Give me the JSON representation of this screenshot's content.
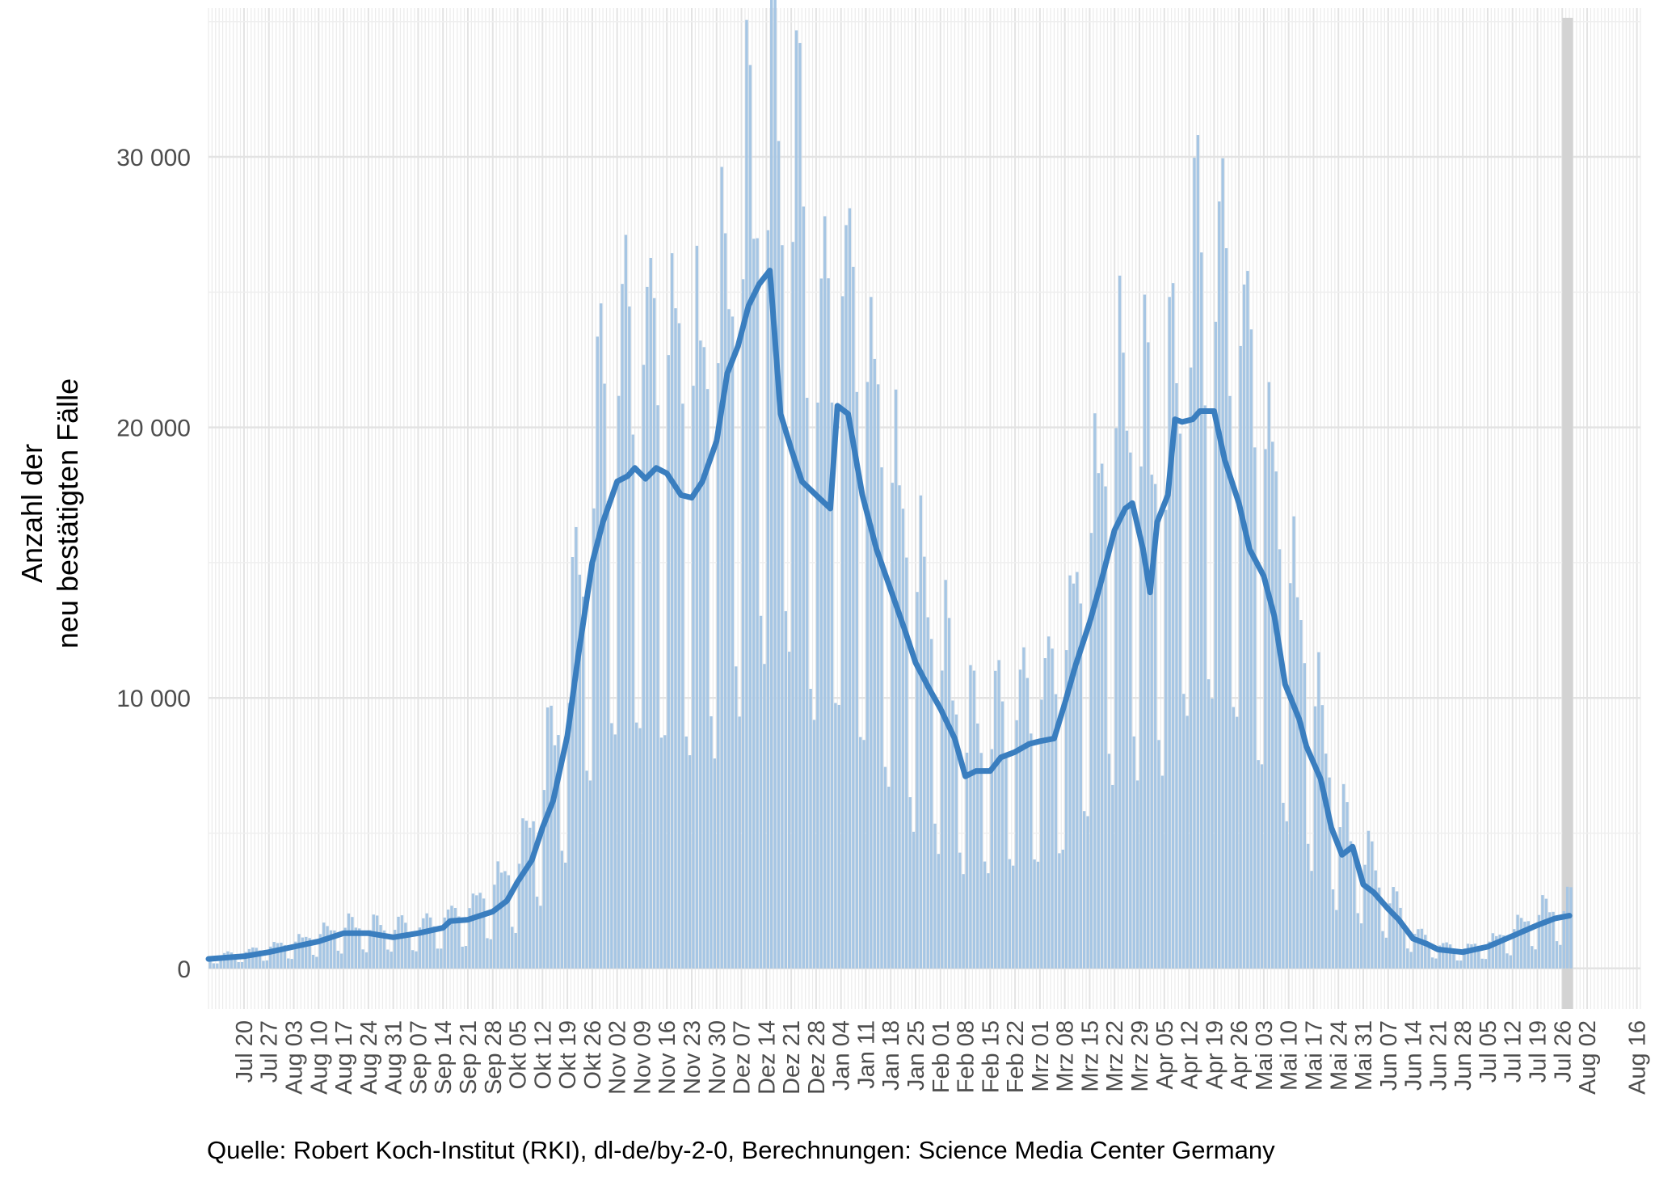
{
  "chart_data": {
    "type": "bar",
    "ylabel_lines": [
      "Anzahl der",
      "neu bestätigten Fälle"
    ],
    "ylim": [
      -1500,
      35500
    ],
    "yticks": [
      0,
      10000,
      20000,
      30000
    ],
    "ytick_labels": [
      "0",
      "10 000",
      "20 000",
      "30 000"
    ],
    "x_range": [
      "2020-07-10",
      "2021-08-17"
    ],
    "xtick_dates": [
      "2020-07-20",
      "2020-07-27",
      "2020-08-03",
      "2020-08-10",
      "2020-08-17",
      "2020-08-24",
      "2020-08-31",
      "2020-09-07",
      "2020-09-14",
      "2020-09-21",
      "2020-09-28",
      "2020-10-05",
      "2020-10-12",
      "2020-10-19",
      "2020-10-26",
      "2020-11-02",
      "2020-11-09",
      "2020-11-16",
      "2020-11-23",
      "2020-11-30",
      "2020-12-07",
      "2020-12-14",
      "2020-12-21",
      "2020-12-28",
      "2021-01-04",
      "2021-01-11",
      "2021-01-18",
      "2021-01-25",
      "2021-02-01",
      "2021-02-08",
      "2021-02-15",
      "2021-02-22",
      "2021-03-01",
      "2021-03-08",
      "2021-03-15",
      "2021-03-22",
      "2021-03-29",
      "2021-04-05",
      "2021-04-12",
      "2021-04-19",
      "2021-04-26",
      "2021-05-03",
      "2021-05-10",
      "2021-05-17",
      "2021-05-24",
      "2021-05-31",
      "2021-06-07",
      "2021-06-14",
      "2021-06-21",
      "2021-06-28",
      "2021-07-05",
      "2021-07-12",
      "2021-07-19",
      "2021-07-26",
      "2021-08-02",
      "2021-08-16"
    ],
    "xtick_labels": [
      "Jul 20",
      "Jul 27",
      "Aug 03",
      "Aug 10",
      "Aug 17",
      "Aug 24",
      "Aug 31",
      "Sep 07",
      "Sep 14",
      "Sep 21",
      "Sep 28",
      "Okt 05",
      "Okt 12",
      "Okt 19",
      "Okt 26",
      "Nov 02",
      "Nov 09",
      "Nov 16",
      "Nov 23",
      "Nov 30",
      "Dez 07",
      "Dez 14",
      "Dez 21",
      "Dez 28",
      "Jan 04",
      "Jan 11",
      "Jan 18",
      "Jan 25",
      "Feb 01",
      "Feb 08",
      "Feb 15",
      "Feb 22",
      "Mrz 01",
      "Mrz 08",
      "Mrz 15",
      "Mrz 22",
      "Mrz 29",
      "Apr 05",
      "Apr 12",
      "Apr 19",
      "Apr 26",
      "Mai 03",
      "Mai 10",
      "Mai 17",
      "Mai 24",
      "Mai 31",
      "Jun 07",
      "Jun 14",
      "Jun 21",
      "Jun 28",
      "Jul 05",
      "Jul 12",
      "Jul 19",
      "Jul 26",
      "Aug 02",
      "Aug 16"
    ],
    "series": [
      {
        "kind": "bars",
        "color": "#a6c6e4",
        "start_date": "2020-07-10",
        "end_date": "2021-07-28",
        "weekly_pattern": [
          1.15,
          1.45,
          1.4,
          1.25,
          1.1,
          0.5,
          0.45
        ],
        "points": [
          [
            "2020-07-10",
            350
          ],
          [
            "2020-07-20",
            500
          ],
          [
            "2020-08-03",
            800
          ],
          [
            "2020-08-17",
            1300
          ],
          [
            "2020-08-24",
            1300
          ],
          [
            "2020-09-07",
            1300
          ],
          [
            "2020-09-21",
            1800
          ],
          [
            "2020-10-05",
            3200
          ],
          [
            "2020-10-12",
            5700
          ],
          [
            "2020-10-19",
            9000
          ],
          [
            "2020-10-26",
            15500
          ],
          [
            "2020-11-02",
            18200
          ],
          [
            "2020-11-09",
            18400
          ],
          [
            "2020-11-16",
            18300
          ],
          [
            "2020-11-23",
            17400
          ],
          [
            "2020-11-30",
            18500
          ],
          [
            "2020-12-07",
            22000
          ],
          [
            "2020-12-14",
            25000
          ],
          [
            "2020-12-21",
            24500
          ],
          [
            "2020-12-28",
            18000
          ],
          [
            "2021-01-04",
            20500
          ],
          [
            "2021-01-11",
            17500
          ],
          [
            "2021-01-18",
            14500
          ],
          [
            "2021-01-25",
            11500
          ],
          [
            "2021-02-01",
            9500
          ],
          [
            "2021-02-08",
            7300
          ],
          [
            "2021-02-15",
            7400
          ],
          [
            "2021-02-22",
            7900
          ],
          [
            "2021-03-01",
            8200
          ],
          [
            "2021-03-08",
            9500
          ],
          [
            "2021-03-15",
            13000
          ],
          [
            "2021-03-22",
            16500
          ],
          [
            "2021-03-29",
            16000
          ],
          [
            "2021-04-05",
            15500
          ],
          [
            "2021-04-12",
            20300
          ],
          [
            "2021-04-19",
            20600
          ],
          [
            "2021-04-26",
            19000
          ],
          [
            "2021-05-03",
            15500
          ],
          [
            "2021-05-10",
            11500
          ],
          [
            "2021-05-17",
            8000
          ],
          [
            "2021-05-24",
            4500
          ],
          [
            "2021-05-31",
            3500
          ],
          [
            "2021-06-07",
            2200
          ],
          [
            "2021-06-14",
            1100
          ],
          [
            "2021-06-21",
            700
          ],
          [
            "2021-06-28",
            600
          ],
          [
            "2021-07-05",
            800
          ],
          [
            "2021-07-12",
            1200
          ],
          [
            "2021-07-19",
            1700
          ],
          [
            "2021-07-28",
            2000
          ]
        ]
      },
      {
        "kind": "line",
        "color": "#3a7ebf",
        "points": [
          [
            "2020-07-10",
            350
          ],
          [
            "2020-07-20",
            450
          ],
          [
            "2020-07-27",
            600
          ],
          [
            "2020-08-03",
            800
          ],
          [
            "2020-08-10",
            1000
          ],
          [
            "2020-08-17",
            1300
          ],
          [
            "2020-08-24",
            1300
          ],
          [
            "2020-08-31",
            1150
          ],
          [
            "2020-09-07",
            1300
          ],
          [
            "2020-09-14",
            1500
          ],
          [
            "2020-09-16",
            1750
          ],
          [
            "2020-09-21",
            1800
          ],
          [
            "2020-09-28",
            2100
          ],
          [
            "2020-10-02",
            2500
          ],
          [
            "2020-10-05",
            3200
          ],
          [
            "2020-10-09",
            4000
          ],
          [
            "2020-10-12",
            5200
          ],
          [
            "2020-10-15",
            6200
          ],
          [
            "2020-10-19",
            8600
          ],
          [
            "2020-10-22",
            11500
          ],
          [
            "2020-10-26",
            15000
          ],
          [
            "2020-10-29",
            16500
          ],
          [
            "2020-11-02",
            18000
          ],
          [
            "2020-11-05",
            18200
          ],
          [
            "2020-11-07",
            18500
          ],
          [
            "2020-11-10",
            18100
          ],
          [
            "2020-11-13",
            18500
          ],
          [
            "2020-11-16",
            18300
          ],
          [
            "2020-11-20",
            17500
          ],
          [
            "2020-11-23",
            17400
          ],
          [
            "2020-11-26",
            18000
          ],
          [
            "2020-11-30",
            19500
          ],
          [
            "2020-12-03",
            22000
          ],
          [
            "2020-12-06",
            23000
          ],
          [
            "2020-12-09",
            24500
          ],
          [
            "2020-12-12",
            25300
          ],
          [
            "2020-12-15",
            25800
          ],
          [
            "2020-12-18",
            20500
          ],
          [
            "2020-12-21",
            19200
          ],
          [
            "2020-12-24",
            18000
          ],
          [
            "2020-12-28",
            17500
          ],
          [
            "2021-01-01",
            17000
          ],
          [
            "2021-01-03",
            20800
          ],
          [
            "2021-01-06",
            20500
          ],
          [
            "2021-01-10",
            17500
          ],
          [
            "2021-01-14",
            15500
          ],
          [
            "2021-01-18",
            14000
          ],
          [
            "2021-01-22",
            12500
          ],
          [
            "2021-01-25",
            11300
          ],
          [
            "2021-01-29",
            10300
          ],
          [
            "2021-02-01",
            9600
          ],
          [
            "2021-02-05",
            8500
          ],
          [
            "2021-02-08",
            7100
          ],
          [
            "2021-02-11",
            7300
          ],
          [
            "2021-02-15",
            7300
          ],
          [
            "2021-02-18",
            7800
          ],
          [
            "2021-02-22",
            8000
          ],
          [
            "2021-02-26",
            8300
          ],
          [
            "2021-03-01",
            8400
          ],
          [
            "2021-03-05",
            8500
          ],
          [
            "2021-03-08",
            9800
          ],
          [
            "2021-03-11",
            11200
          ],
          [
            "2021-03-15",
            12800
          ],
          [
            "2021-03-18",
            14200
          ],
          [
            "2021-03-22",
            16200
          ],
          [
            "2021-03-25",
            17000
          ],
          [
            "2021-03-27",
            17200
          ],
          [
            "2021-03-30",
            15500
          ],
          [
            "2021-04-01",
            13900
          ],
          [
            "2021-04-03",
            16500
          ],
          [
            "2021-04-06",
            17500
          ],
          [
            "2021-04-08",
            20300
          ],
          [
            "2021-04-10",
            20200
          ],
          [
            "2021-04-13",
            20300
          ],
          [
            "2021-04-15",
            20600
          ],
          [
            "2021-04-19",
            20600
          ],
          [
            "2021-04-22",
            18800
          ],
          [
            "2021-04-26",
            17200
          ],
          [
            "2021-04-29",
            15500
          ],
          [
            "2021-05-03",
            14500
          ],
          [
            "2021-05-06",
            13000
          ],
          [
            "2021-05-09",
            10500
          ],
          [
            "2021-05-13",
            9200
          ],
          [
            "2021-05-15",
            8200
          ],
          [
            "2021-05-19",
            7000
          ],
          [
            "2021-05-22",
            5200
          ],
          [
            "2021-05-25",
            4200
          ],
          [
            "2021-05-28",
            4500
          ],
          [
            "2021-05-31",
            3100
          ],
          [
            "2021-06-03",
            2800
          ],
          [
            "2021-06-07",
            2200
          ],
          [
            "2021-06-10",
            1800
          ],
          [
            "2021-06-14",
            1100
          ],
          [
            "2021-06-18",
            900
          ],
          [
            "2021-06-21",
            700
          ],
          [
            "2021-06-28",
            600
          ],
          [
            "2021-07-05",
            800
          ],
          [
            "2021-07-12",
            1200
          ],
          [
            "2021-07-19",
            1600
          ],
          [
            "2021-07-24",
            1850
          ],
          [
            "2021-07-28",
            1950
          ]
        ]
      }
    ],
    "highlight": {
      "start": "2021-07-26",
      "end": "2021-07-28",
      "color": "#d3d3d3"
    },
    "grid": true,
    "source_text": "Quelle: Robert Koch-Institut (RKI), dl-de/by-2-0, Berechnungen: Science Media Center Germany"
  }
}
